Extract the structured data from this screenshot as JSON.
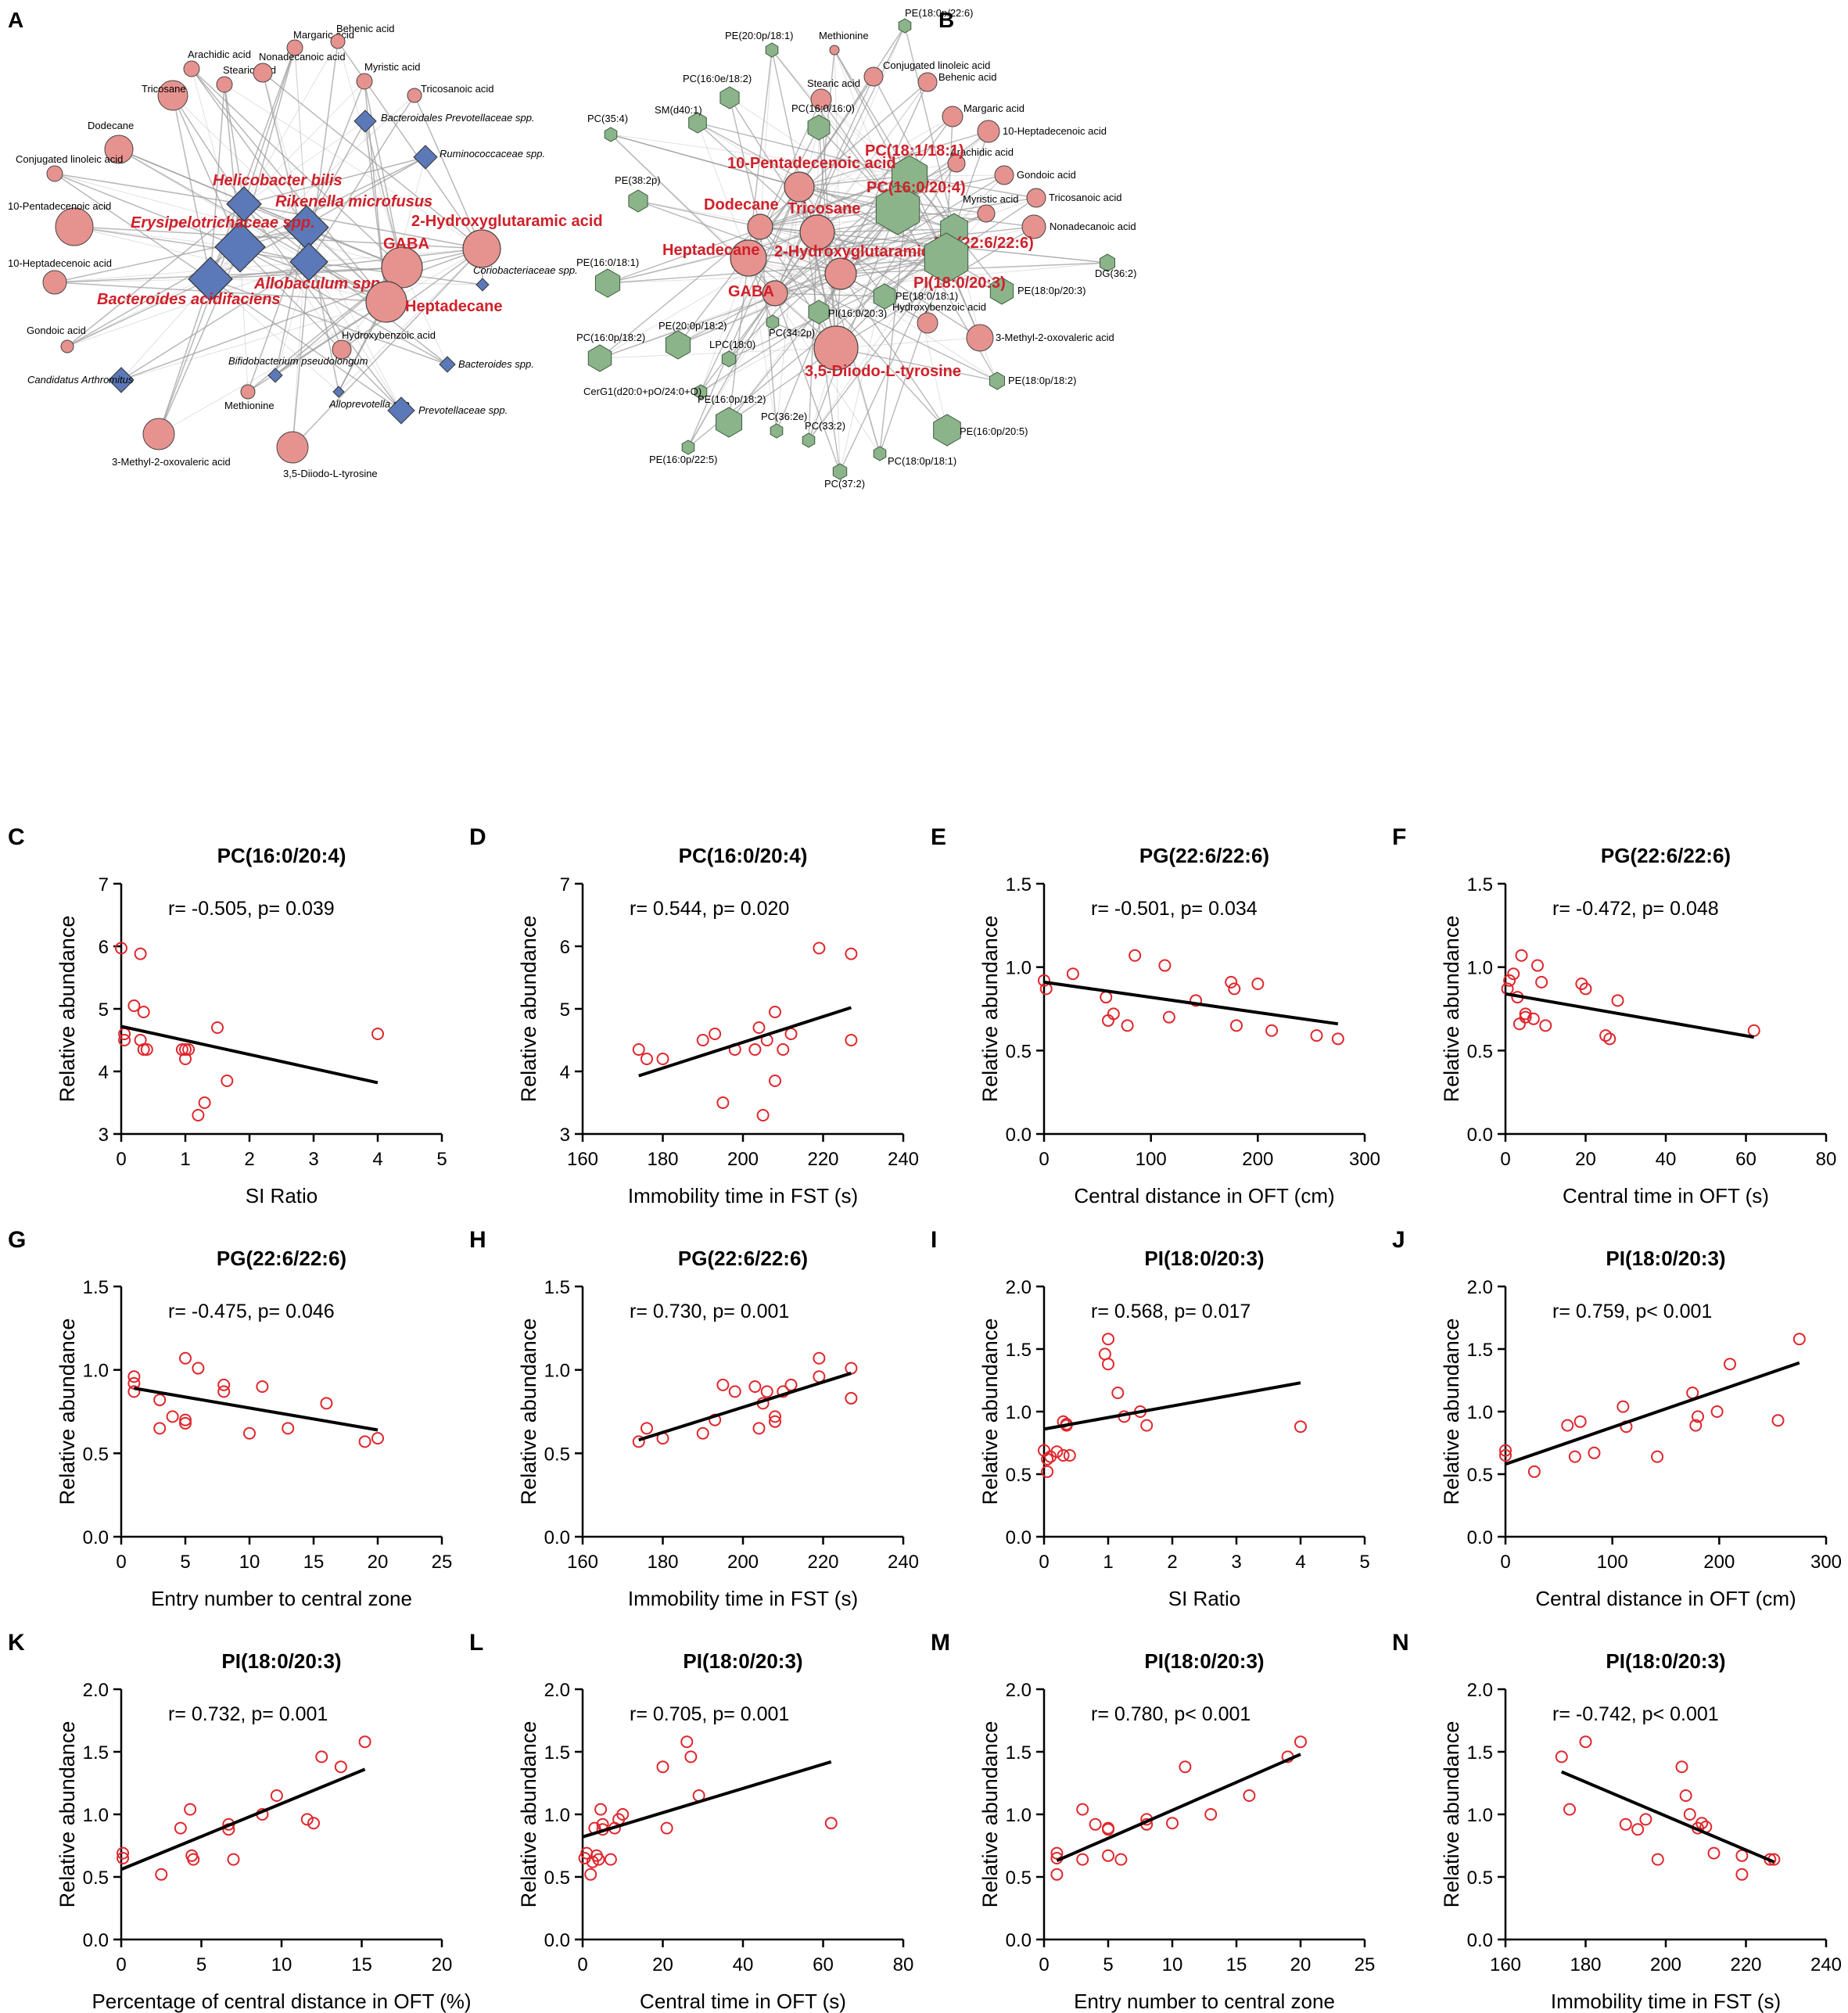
{
  "colors": {
    "metabolite_node": "#e6928e",
    "bacteria_node": "#5b79b8",
    "lipid_node": "#8bb48b",
    "highlight_text": "#d0202a",
    "point": "#e0262c",
    "line": "#000000",
    "edge": "#9a9a9a"
  },
  "network_a": {
    "panel_label": "A",
    "metabolites": [
      "Margaric acid",
      "Behenic acid",
      "Arachidic acid",
      "Stearic acid",
      "Nonadecanoic acid",
      "Myristic acid",
      "Tricosane",
      "Tricosanoic acid",
      "Dodecane",
      "Conjugated linoleic acid",
      "10-Pentadecenoic acid",
      "10-Heptadecenoic acid",
      "Gondoic acid",
      "Hydroxybenzoic acid",
      "Methionine",
      "3-Methyl-2-oxovaleric acid",
      "3,5-Diiodo-L-tyrosine"
    ],
    "bacteria": [
      "Bacteroidales Prevotellaceae spp.",
      "Ruminococcaceae spp.",
      "Coriobacteriaceae spp.",
      "Bifidobacterium pseudolongum",
      "Bacteroides spp.",
      "Candidatus Arthromitus",
      "Alloprevotella spp.",
      "Prevotellaceae spp."
    ],
    "highlighted": [
      "Helicobacter bilis",
      "Rikenella microfusus",
      "2-Hydroxyglutaramic acid",
      "Erysipelotrichaceae spp.",
      "GABA",
      "Allobaculum spp.",
      "Bacteroides acidifaciens",
      "Heptadecane"
    ]
  },
  "network_b": {
    "panel_label": "B",
    "metabolites": [
      "Methionine",
      "Conjugated linoleic acid",
      "Stearic acid",
      "Behenic acid",
      "Margaric acid",
      "10-Heptadecenoic acid",
      "Arachidic acid",
      "Gondoic acid",
      "Tricosanoic acid",
      "Myristic acid",
      "Nonadecanoic acid",
      "Hydroxybenzoic acid",
      "3-Methyl-2-oxovaleric acid"
    ],
    "lipids": [
      "PE(18:0p/22:6)",
      "PE(20:0p/18:1)",
      "PC(16:0e/18:2)",
      "SM(d40:1)",
      "PC(35:4)",
      "PC(16:0/16:0)",
      "PE(38:2p)",
      "PE(16:0/18:1)",
      "PE(18:0/18:1)",
      "PI(16:0/20:3)",
      "DG(36:2)",
      "PE(18:0p/20:3)",
      "PE(20:0p/18:2)",
      "PC(34:2p)",
      "PC(16:0p/18:2)",
      "LPC(18:0)",
      "CerG1(d20:0+pO/24:0+O)",
      "PE(16:0p/18:2)",
      "PC(36:2e)",
      "PC(33:2)",
      "PE(16:0p/22:5)",
      "PE(18:0p/18:2)",
      "PE(16:0p/20:5)",
      "PC(18:0p/18:1)",
      "PC(37:2)"
    ],
    "highlighted": [
      "PC(18:1/18:1)",
      "10-Pentadecenoic acid",
      "PC(16:0/20:4)",
      "Dodecane",
      "Tricosane",
      "PG(22:6/22:6)",
      "Heptadecane",
      "2-Hydroxyglutaramic acid",
      "PI(18:0/20:3)",
      "GABA",
      "3,5-Diiodo-L-tyrosine"
    ]
  },
  "chart_data": [
    {
      "panel": "C",
      "type": "scatter",
      "title": "PC(16:0/20:4)",
      "stat": "r= -0.505, p= 0.039",
      "xlabel": "SI Ratio",
      "ylabel": "Relative abundance",
      "xlim": [
        0,
        5
      ],
      "ylim": [
        3,
        7
      ],
      "xticks": [
        0,
        1,
        2,
        3,
        4,
        5
      ],
      "yticks": [
        3,
        4,
        5,
        6,
        7
      ],
      "x": [
        0.0,
        0.05,
        0.2,
        0.3,
        0.35,
        0.4,
        0.3,
        0.35,
        0.95,
        1.0,
        1.0,
        1.05,
        1.2,
        1.3,
        1.5,
        1.65,
        4.0,
        0.05
      ],
      "y": [
        5.97,
        4.5,
        5.05,
        5.88,
        4.95,
        4.35,
        4.5,
        4.35,
        4.35,
        4.35,
        4.2,
        4.35,
        3.3,
        3.5,
        4.7,
        3.85,
        4.6,
        4.6
      ],
      "fit": [
        [
          0.0,
          4.72
        ],
        [
          4.0,
          3.82
        ]
      ]
    },
    {
      "panel": "D",
      "type": "scatter",
      "title": "PC(16:0/20:4)",
      "stat": "r= 0.544, p= 0.020",
      "xlabel": "Immobility time in FST (s)",
      "ylabel": "Relative abundance",
      "xlim": [
        160,
        240
      ],
      "ylim": [
        3,
        7
      ],
      "xticks": [
        160,
        180,
        200,
        220,
        240
      ],
      "yticks": [
        3,
        4,
        5,
        6,
        7
      ],
      "x": [
        174,
        176,
        180,
        190,
        193,
        195,
        198,
        203,
        204,
        205,
        206,
        208,
        208,
        210,
        212,
        219,
        227,
        227
      ],
      "y": [
        4.35,
        4.2,
        4.2,
        4.5,
        4.6,
        3.5,
        4.35,
        4.35,
        4.7,
        3.3,
        4.5,
        4.95,
        3.85,
        4.35,
        4.6,
        5.97,
        5.88,
        4.5
      ],
      "fit": [
        [
          174,
          3.93
        ],
        [
          227,
          5.02
        ]
      ]
    },
    {
      "panel": "E",
      "type": "scatter",
      "title": "PG(22:6/22:6)",
      "stat": "r= -0.501, p= 0.034",
      "xlabel": "Central distance in OFT (cm)",
      "ylabel": "Relative abundance",
      "xlim": [
        0,
        300
      ],
      "ylim": [
        0,
        1.5
      ],
      "xticks": [
        0,
        100,
        200,
        300
      ],
      "yticks": [
        0.0,
        0.5,
        1.0,
        1.5
      ],
      "x": [
        0,
        2,
        27,
        58,
        60,
        65,
        78,
        85,
        113,
        117,
        142,
        175,
        178,
        180,
        200,
        213,
        255,
        275
      ],
      "y": [
        0.92,
        0.87,
        0.96,
        0.82,
        0.68,
        0.72,
        0.65,
        1.07,
        1.01,
        0.7,
        0.8,
        0.91,
        0.87,
        0.65,
        0.9,
        0.62,
        0.59,
        0.57
      ],
      "fit": [
        [
          0,
          0.91
        ],
        [
          275,
          0.66
        ]
      ]
    },
    {
      "panel": "F",
      "type": "scatter",
      "title": "PG(22:6/22:6)",
      "stat": "r= -0.472, p= 0.048",
      "xlabel": "Central time in OFT (s)",
      "ylabel": "Relative abundance",
      "xlim": [
        0,
        80
      ],
      "ylim": [
        0,
        1.5
      ],
      "xticks": [
        0,
        20,
        40,
        60,
        80
      ],
      "yticks": [
        0.0,
        0.5,
        1.0,
        1.5
      ],
      "x": [
        0.5,
        1,
        2,
        3,
        3.5,
        4,
        5,
        5,
        7,
        8,
        9,
        10,
        19,
        20,
        25,
        26,
        28,
        62
      ],
      "y": [
        0.87,
        0.92,
        0.96,
        0.82,
        0.66,
        1.07,
        0.7,
        0.72,
        0.69,
        1.01,
        0.91,
        0.65,
        0.9,
        0.87,
        0.59,
        0.57,
        0.8,
        0.62
      ],
      "fit": [
        [
          0,
          0.84
        ],
        [
          62,
          0.58
        ]
      ]
    },
    {
      "panel": "G",
      "type": "scatter",
      "title": "PG(22:6/22:6)",
      "stat": "r= -0.475, p= 0.046",
      "xlabel": "Entry number to central zone",
      "ylabel": "Relative abundance",
      "xlim": [
        0,
        25
      ],
      "ylim": [
        0,
        1.5
      ],
      "xticks": [
        0,
        5,
        10,
        15,
        20,
        25
      ],
      "yticks": [
        0.0,
        0.5,
        1.0,
        1.5
      ],
      "x": [
        1,
        1,
        1,
        3,
        3,
        4,
        5,
        5,
        5,
        6,
        8,
        8,
        11,
        13,
        16,
        19,
        20,
        10
      ],
      "y": [
        0.96,
        0.92,
        0.87,
        0.82,
        0.65,
        0.72,
        0.68,
        0.7,
        1.07,
        1.01,
        0.91,
        0.87,
        0.9,
        0.65,
        0.8,
        0.57,
        0.59,
        0.62
      ],
      "fit": [
        [
          1,
          0.89
        ],
        [
          20,
          0.64
        ]
      ]
    },
    {
      "panel": "H",
      "type": "scatter",
      "title": "PG(22:6/22:6)",
      "stat": "r= 0.730, p= 0.001",
      "xlabel": "Immobility time in FST (s)",
      "ylabel": "Relative abundance",
      "xlim": [
        160,
        240
      ],
      "ylim": [
        0,
        1.5
      ],
      "xticks": [
        160,
        180,
        200,
        220,
        240
      ],
      "yticks": [
        0.0,
        0.5,
        1.0,
        1.5
      ],
      "x": [
        174,
        176,
        180,
        190,
        193,
        195,
        198,
        203,
        204,
        205,
        206,
        208,
        208,
        210,
        212,
        219,
        219,
        227,
        227
      ],
      "y": [
        0.57,
        0.65,
        0.59,
        0.62,
        0.7,
        0.91,
        0.87,
        0.9,
        0.65,
        0.8,
        0.87,
        0.69,
        0.72,
        0.87,
        0.91,
        0.96,
        1.07,
        1.01,
        0.83
      ],
      "fit": [
        [
          174,
          0.58
        ],
        [
          227,
          0.98
        ]
      ]
    },
    {
      "panel": "I",
      "type": "scatter",
      "title": "PI(18:0/20:3)",
      "stat": "r= 0.568, p= 0.017",
      "xlabel": "SI Ratio",
      "ylabel": "Relative abundance",
      "xlim": [
        0,
        5
      ],
      "ylim": [
        0,
        2.0
      ],
      "xticks": [
        0,
        1,
        2,
        3,
        4,
        5
      ],
      "yticks": [
        0.0,
        0.5,
        1.0,
        1.5,
        2.0
      ],
      "x": [
        0,
        0.05,
        0.1,
        0.2,
        0.3,
        0.3,
        0.35,
        0.4,
        0.35,
        0.95,
        1.0,
        1.0,
        1.15,
        1.25,
        1.5,
        1.6,
        4.0,
        0.05
      ],
      "y": [
        0.69,
        0.52,
        0.64,
        0.68,
        0.65,
        0.92,
        0.9,
        0.65,
        0.89,
        1.46,
        1.58,
        1.38,
        1.15,
        0.96,
        1.0,
        0.89,
        0.88,
        0.62
      ],
      "fit": [
        [
          0,
          0.86
        ],
        [
          4,
          1.23
        ]
      ]
    },
    {
      "panel": "J",
      "type": "scatter",
      "title": "PI(18:0/20:3)",
      "stat": "r= 0.759, p< 0.001",
      "xlabel": "Central distance in OFT (cm)",
      "ylabel": "Relative abundance",
      "xlim": [
        0,
        300
      ],
      "ylim": [
        0,
        2.0
      ],
      "xticks": [
        0,
        100,
        200,
        300
      ],
      "yticks": [
        0.0,
        0.5,
        1.0,
        1.5,
        2.0
      ],
      "x": [
        0,
        0,
        27,
        58,
        65,
        70,
        83,
        110,
        113,
        142,
        175,
        178,
        180,
        198,
        210,
        255,
        275
      ],
      "y": [
        0.69,
        0.65,
        0.52,
        0.89,
        0.64,
        0.92,
        0.67,
        1.04,
        0.88,
        0.64,
        1.15,
        0.89,
        0.96,
        1.0,
        1.38,
        0.93,
        1.58
      ],
      "fit": [
        [
          0,
          0.58
        ],
        [
          275,
          1.39
        ]
      ]
    },
    {
      "panel": "K",
      "type": "scatter",
      "title": "PI(18:0/20:3)",
      "stat": "r= 0.732, p= 0.001",
      "xlabel": "Percentage of central distance in OFT (%)",
      "ylabel": "Relative abundance",
      "xlim": [
        0,
        20
      ],
      "ylim": [
        0,
        2.0
      ],
      "xticks": [
        0,
        5,
        10,
        15,
        20
      ],
      "yticks": [
        0.0,
        0.5,
        1.0,
        1.5,
        2.0
      ],
      "x": [
        0.1,
        0.1,
        2.5,
        3.7,
        4.3,
        4.4,
        4.5,
        6.7,
        7,
        8.8,
        9.7,
        11.6,
        12,
        12.5,
        13.7,
        15.2,
        6.7
      ],
      "y": [
        0.69,
        0.65,
        0.52,
        0.89,
        1.04,
        0.67,
        0.64,
        0.88,
        0.64,
        1.0,
        1.15,
        0.96,
        0.93,
        1.46,
        1.38,
        1.58,
        0.92
      ],
      "fit": [
        [
          0,
          0.56
        ],
        [
          15.2,
          1.36
        ]
      ]
    },
    {
      "panel": "L",
      "type": "scatter",
      "title": "PI(18:0/20:3)",
      "stat": "r= 0.705, p= 0.001",
      "xlabel": "Central time in OFT (s)",
      "ylabel": "Relative abundance",
      "xlim": [
        0,
        80
      ],
      "ylim": [
        0,
        2.0
      ],
      "xticks": [
        0,
        20,
        40,
        60,
        80
      ],
      "yticks": [
        0.0,
        0.5,
        1.0,
        1.5,
        2.0
      ],
      "x": [
        0.5,
        1,
        2,
        3,
        3.5,
        4,
        4.5,
        5,
        5,
        7,
        8,
        9,
        10,
        20,
        21,
        26,
        27,
        29,
        62,
        2.5
      ],
      "y": [
        0.65,
        0.69,
        0.52,
        0.89,
        0.67,
        0.64,
        1.04,
        0.88,
        0.92,
        0.64,
        0.89,
        0.96,
        1.0,
        1.38,
        0.89,
        1.58,
        1.46,
        1.15,
        0.93,
        0.62
      ],
      "fit": [
        [
          0,
          0.82
        ],
        [
          62,
          1.42
        ]
      ]
    },
    {
      "panel": "M",
      "type": "scatter",
      "title": "PI(18:0/20:3)",
      "stat": "r= 0.780, p< 0.001",
      "xlabel": "Entry number to central zone",
      "ylabel": "Relative abundance",
      "xlim": [
        0,
        25
      ],
      "ylim": [
        0,
        2.0
      ],
      "xticks": [
        0,
        5,
        10,
        15,
        20,
        25
      ],
      "yticks": [
        0.0,
        0.5,
        1.0,
        1.5,
        2.0
      ],
      "x": [
        1,
        1,
        1,
        3,
        3,
        4,
        5,
        5,
        5,
        6,
        8,
        8,
        10,
        11,
        13,
        16,
        19,
        20
      ],
      "y": [
        0.69,
        0.52,
        0.65,
        1.04,
        0.64,
        0.92,
        0.88,
        0.89,
        0.67,
        0.64,
        0.96,
        0.92,
        0.93,
        1.38,
        1.0,
        1.15,
        1.46,
        1.58
      ],
      "fit": [
        [
          1,
          0.63
        ],
        [
          20,
          1.48
        ]
      ]
    },
    {
      "panel": "N",
      "type": "scatter",
      "title": "PI(18:0/20:3)",
      "stat": "r= -0.742, p< 0.001",
      "xlabel": "Immobility time in FST (s)",
      "ylabel": "Relative abundance",
      "xlim": [
        160,
        240
      ],
      "ylim": [
        0,
        2.0
      ],
      "xticks": [
        160,
        180,
        200,
        220,
        240
      ],
      "yticks": [
        0.0,
        0.5,
        1.0,
        1.5,
        2.0
      ],
      "x": [
        174,
        176,
        180,
        190,
        193,
        195,
        198,
        204,
        205,
        206,
        208,
        209,
        210,
        212,
        219,
        219,
        226,
        227
      ],
      "y": [
        1.46,
        1.04,
        1.58,
        0.92,
        0.88,
        0.96,
        0.64,
        1.38,
        1.15,
        1.0,
        0.89,
        0.93,
        0.9,
        0.69,
        0.52,
        0.67,
        0.64,
        0.64
      ],
      "fit": [
        [
          174,
          1.34
        ],
        [
          227,
          0.62
        ]
      ]
    }
  ]
}
